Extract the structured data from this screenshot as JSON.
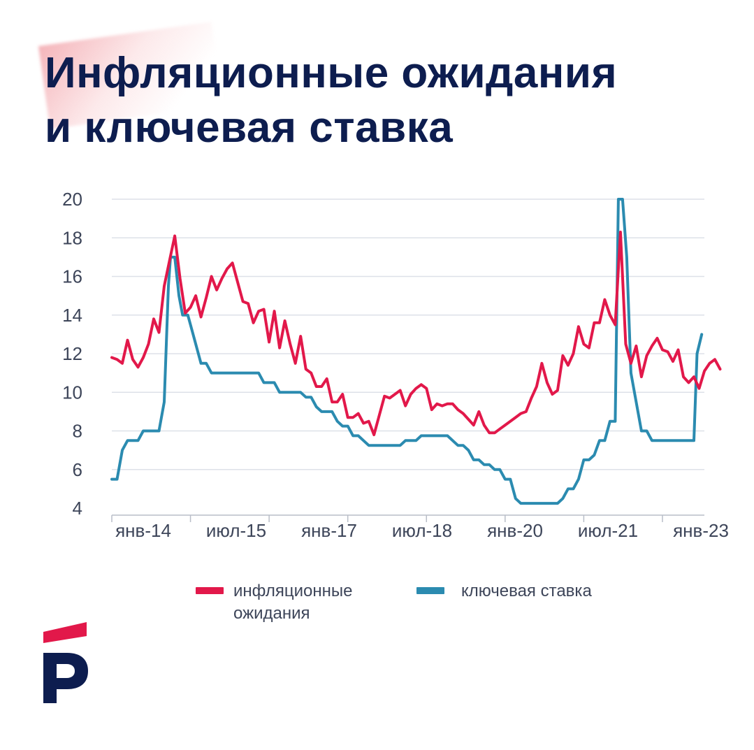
{
  "title": {
    "line1": "Инфляционные ожидания",
    "line2": "и ключевая ставка"
  },
  "colors": {
    "title": "#0d1d4f",
    "inflation": "#e2184a",
    "key_rate": "#2b8bb0",
    "grid": "#dde1e8",
    "axis_text": "#3d4559",
    "logo_red": "#e2184a",
    "logo_navy": "#0d1d4f"
  },
  "legend": {
    "inflation_label": "инфляционные ожидания",
    "rate_label": "ключевая ставка"
  },
  "logo": {
    "icon": "p-logo-icon"
  },
  "chart_data": {
    "type": "line",
    "title": "Инфляционные ожидания и ключевая ставка",
    "xlabel": "",
    "ylabel": "",
    "ylim": [
      4,
      20
    ],
    "yticks": [
      4,
      6,
      8,
      10,
      12,
      14,
      16,
      18,
      20
    ],
    "x_start": "2014-01",
    "x_unit": "months since Jan 2014",
    "xlim": [
      0,
      113
    ],
    "xticks": [
      {
        "x": 0,
        "label": "янв-14"
      },
      {
        "x": 18,
        "label": "июл-15"
      },
      {
        "x": 36,
        "label": "янв-17"
      },
      {
        "x": 54,
        "label": "июл-18"
      },
      {
        "x": 72,
        "label": "янв-20"
      },
      {
        "x": 90,
        "label": "июл-21"
      },
      {
        "x": 108,
        "label": "янв-23"
      }
    ],
    "grid": true,
    "series": [
      {
        "name": "инфляционные ожидания",
        "points": [
          [
            0,
            11.8
          ],
          [
            1,
            11.7
          ],
          [
            2,
            11.5
          ],
          [
            3,
            12.7
          ],
          [
            4,
            11.7
          ],
          [
            5,
            11.3
          ],
          [
            6,
            11.8
          ],
          [
            7,
            12.5
          ],
          [
            8,
            13.8
          ],
          [
            9,
            13.1
          ],
          [
            10,
            15.5
          ],
          [
            11,
            16.8
          ],
          [
            12,
            18.1
          ],
          [
            13,
            15.9
          ],
          [
            14,
            14.1
          ],
          [
            15,
            14.4
          ],
          [
            16,
            15
          ],
          [
            17,
            13.9
          ],
          [
            18,
            14.9
          ],
          [
            19,
            16
          ],
          [
            20,
            15.3
          ],
          [
            21,
            15.9
          ],
          [
            22,
            16.4
          ],
          [
            23,
            16.7
          ],
          [
            24,
            15.7
          ],
          [
            25,
            14.7
          ],
          [
            26,
            14.6
          ],
          [
            27,
            13.6
          ],
          [
            28,
            14.2
          ],
          [
            29,
            14.3
          ],
          [
            30,
            12.6
          ],
          [
            31,
            14.2
          ],
          [
            32,
            12.3
          ],
          [
            33,
            13.7
          ],
          [
            34,
            12.5
          ],
          [
            35,
            11.5
          ],
          [
            36,
            12.9
          ],
          [
            37,
            11.2
          ],
          [
            38,
            11
          ],
          [
            39,
            10.3
          ],
          [
            40,
            10.3
          ],
          [
            41,
            10.7
          ],
          [
            42,
            9.5
          ],
          [
            43,
            9.5
          ],
          [
            44,
            9.9
          ],
          [
            45,
            8.7
          ],
          [
            46,
            8.7
          ],
          [
            47,
            8.9
          ],
          [
            48,
            8.4
          ],
          [
            49,
            8.5
          ],
          [
            50,
            7.8
          ],
          [
            51,
            8.8
          ],
          [
            52,
            9.8
          ],
          [
            53,
            9.7
          ],
          [
            54,
            9.9
          ],
          [
            55,
            10.1
          ],
          [
            56,
            9.3
          ],
          [
            57,
            9.9
          ],
          [
            58,
            10.2
          ],
          [
            59,
            10.4
          ],
          [
            60,
            10.2
          ],
          [
            61,
            9.1
          ],
          [
            62,
            9.4
          ],
          [
            63,
            9.3
          ],
          [
            64,
            9.4
          ],
          [
            65,
            9.4
          ],
          [
            66,
            9.1
          ],
          [
            67,
            8.9
          ],
          [
            68,
            8.6
          ],
          [
            69,
            8.3
          ],
          [
            70,
            9
          ],
          [
            71,
            8.3
          ],
          [
            72,
            7.9
          ],
          [
            73,
            7.9
          ],
          [
            74,
            8.1
          ],
          [
            75,
            8.3
          ],
          [
            76,
            8.5
          ],
          [
            77,
            8.7
          ],
          [
            78,
            8.9
          ],
          [
            79,
            9
          ],
          [
            80,
            9.7
          ],
          [
            81,
            10.3
          ],
          [
            82,
            11.5
          ],
          [
            83,
            10.5
          ],
          [
            84,
            9.9
          ],
          [
            85,
            10.1
          ],
          [
            86,
            11.9
          ],
          [
            87,
            11.4
          ],
          [
            88,
            12
          ],
          [
            89,
            13.4
          ],
          [
            90,
            12.5
          ],
          [
            91,
            12.3
          ],
          [
            92,
            13.6
          ],
          [
            93,
            13.6
          ],
          [
            94,
            14.8
          ],
          [
            95,
            14
          ],
          [
            96,
            13.5
          ],
          [
            97,
            18.3
          ],
          [
            98,
            12.5
          ],
          [
            99,
            11.5
          ],
          [
            100,
            12.4
          ],
          [
            101,
            10.8
          ],
          [
            102,
            11.9
          ],
          [
            103,
            12.4
          ],
          [
            104,
            12.8
          ],
          [
            105,
            12.2
          ],
          [
            106,
            12.1
          ],
          [
            107,
            11.6
          ],
          [
            108,
            12.2
          ],
          [
            109,
            10.8
          ],
          [
            110,
            10.5
          ],
          [
            111,
            10.8
          ],
          [
            112,
            10.2
          ],
          [
            113,
            11.1
          ],
          [
            114,
            11.5
          ],
          [
            115,
            11.7
          ],
          [
            116,
            11.2
          ]
        ]
      },
      {
        "name": "ключевая ставка",
        "points": [
          [
            0,
            5.5
          ],
          [
            1,
            5.5
          ],
          [
            2,
            7
          ],
          [
            3,
            7.5
          ],
          [
            4,
            7.5
          ],
          [
            5,
            7.5
          ],
          [
            6,
            8
          ],
          [
            7,
            8
          ],
          [
            8,
            8
          ],
          [
            9,
            8
          ],
          [
            10,
            9.5
          ],
          [
            10.8,
            15.5
          ],
          [
            11.2,
            17
          ],
          [
            12,
            17
          ],
          [
            12.8,
            15
          ],
          [
            13.5,
            14
          ],
          [
            14.5,
            14
          ],
          [
            15,
            13.5
          ],
          [
            16,
            12.5
          ],
          [
            17,
            11.5
          ],
          [
            18,
            11.5
          ],
          [
            19,
            11
          ],
          [
            22,
            11
          ],
          [
            28,
            11
          ],
          [
            29,
            10.5
          ],
          [
            31,
            10.5
          ],
          [
            32,
            10
          ],
          [
            36,
            10
          ],
          [
            37,
            9.75
          ],
          [
            38,
            9.75
          ],
          [
            39,
            9.25
          ],
          [
            40,
            9
          ],
          [
            42,
            9
          ],
          [
            43,
            8.5
          ],
          [
            44,
            8.25
          ],
          [
            45,
            8.25
          ],
          [
            46,
            7.75
          ],
          [
            47,
            7.75
          ],
          [
            48,
            7.5
          ],
          [
            49,
            7.25
          ],
          [
            55,
            7.25
          ],
          [
            56,
            7.5
          ],
          [
            58,
            7.5
          ],
          [
            59,
            7.75
          ],
          [
            64,
            7.75
          ],
          [
            65,
            7.5
          ],
          [
            66,
            7.25
          ],
          [
            67,
            7.25
          ],
          [
            68,
            7
          ],
          [
            69,
            6.5
          ],
          [
            70,
            6.5
          ],
          [
            71,
            6.25
          ],
          [
            72,
            6.25
          ],
          [
            73,
            6
          ],
          [
            74,
            6
          ],
          [
            75,
            5.5
          ],
          [
            76,
            5.5
          ],
          [
            77,
            4.5
          ],
          [
            78,
            4.25
          ],
          [
            85,
            4.25
          ],
          [
            86,
            4.5
          ],
          [
            87,
            5
          ],
          [
            88,
            5
          ],
          [
            89,
            5.5
          ],
          [
            90,
            6.5
          ],
          [
            91,
            6.5
          ],
          [
            92,
            6.75
          ],
          [
            93,
            7.5
          ],
          [
            94,
            7.5
          ],
          [
            95,
            8.5
          ],
          [
            96,
            8.5
          ],
          [
            96.6,
            20
          ],
          [
            97.4,
            20
          ],
          [
            98.2,
            17
          ],
          [
            99,
            11
          ],
          [
            100,
            9.5
          ],
          [
            101,
            8
          ],
          [
            102,
            8
          ],
          [
            103,
            7.5
          ],
          [
            111,
            7.5
          ],
          [
            111.6,
            12
          ],
          [
            112.5,
            13
          ]
        ]
      }
    ]
  }
}
